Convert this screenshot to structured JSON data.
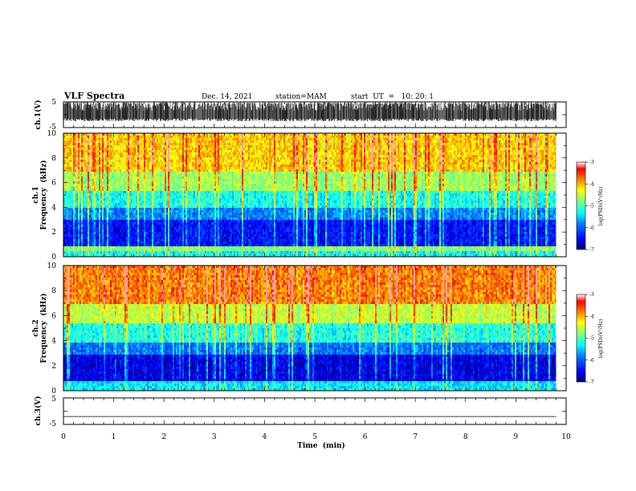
{
  "header": {
    "title": "VLF Spectra",
    "date": "Dec. 14, 2021",
    "station": "station=MAM",
    "start": "start  UT  =   10: 20: 1"
  },
  "chart_data": [
    {
      "type": "line",
      "name": "ch1-waveform",
      "ylabel": "ch.1(V)",
      "ylim": [
        -5,
        5
      ],
      "yticks": [
        "5",
        "-5"
      ],
      "x_range": [
        0,
        9.8
      ],
      "description_values": {
        "typical_min": -2,
        "typical_max": 4
      }
    },
    {
      "type": "heatmap",
      "name": "ch1-spectrogram",
      "ylabel_line1": "ch.1",
      "ylabel_line2": "Frequency  (kHz)",
      "ylim": [
        0,
        10
      ],
      "yticks": [
        "0",
        "2",
        "4",
        "6",
        "8",
        "10"
      ],
      "x_range": [
        0,
        9.8
      ],
      "colorbar": {
        "label": "log(PSD)(V²/Hz)",
        "range": [
          -7,
          -3
        ],
        "ticks": [
          "-3",
          "-4",
          "-5",
          "-6",
          "-7"
        ]
      },
      "bands": [
        {
          "f0": 0,
          "f1": 0.6,
          "level": 0.42
        },
        {
          "f0": 0.6,
          "f1": 1.0,
          "level": 0.55
        },
        {
          "f0": 1.0,
          "f1": 3.0,
          "level": 0.14
        },
        {
          "f0": 3.0,
          "f1": 4.0,
          "level": 0.3
        },
        {
          "f0": 4.0,
          "f1": 5.5,
          "level": 0.44
        },
        {
          "f0": 5.5,
          "f1": 7.0,
          "level": 0.58
        },
        {
          "f0": 7.0,
          "f1": 10,
          "level": 0.72
        }
      ]
    },
    {
      "type": "heatmap",
      "name": "ch2-spectrogram",
      "ylabel_line1": "ch.2",
      "ylabel_line2": "Frequency  (kHz)",
      "ylim": [
        0,
        10
      ],
      "yticks": [
        "0",
        "2",
        "4",
        "6",
        "8",
        "10"
      ],
      "x_range": [
        0,
        9.8
      ],
      "colorbar": {
        "label": "log(PSD)(V²/Hz)",
        "range": [
          -7,
          -3
        ],
        "ticks": [
          "-3",
          "-4",
          "-5",
          "-6",
          "-7"
        ]
      },
      "bands": [
        {
          "f0": 0,
          "f1": 0.8,
          "level": 0.4
        },
        {
          "f0": 0.8,
          "f1": 3.0,
          "level": 0.1
        },
        {
          "f0": 3.0,
          "f1": 4.0,
          "level": 0.28
        },
        {
          "f0": 4.0,
          "f1": 5.5,
          "level": 0.45
        },
        {
          "f0": 5.5,
          "f1": 7.0,
          "level": 0.62
        },
        {
          "f0": 7.0,
          "f1": 10,
          "level": 0.8
        }
      ]
    },
    {
      "type": "line",
      "name": "ch3-waveform",
      "ylabel": "ch.3(V)",
      "ylim": [
        -5,
        5
      ],
      "yticks": [
        "5",
        "-5"
      ],
      "x_range": [
        0,
        9.8
      ],
      "values": [
        -2,
        -2
      ]
    }
  ],
  "xaxis": {
    "label": "Time  (min)",
    "ticks": [
      "0",
      "1",
      "2",
      "3",
      "4",
      "5",
      "6",
      "7",
      "8",
      "9",
      "10"
    ],
    "range": [
      0,
      10
    ]
  },
  "colors": {
    "colormap": [
      "#00007f",
      "#0000ff",
      "#0080ff",
      "#00ffff",
      "#80ff80",
      "#ffff00",
      "#ff8000",
      "#ff0000",
      "#ffffff"
    ],
    "axis": "#000000",
    "waveform": "#000000"
  }
}
